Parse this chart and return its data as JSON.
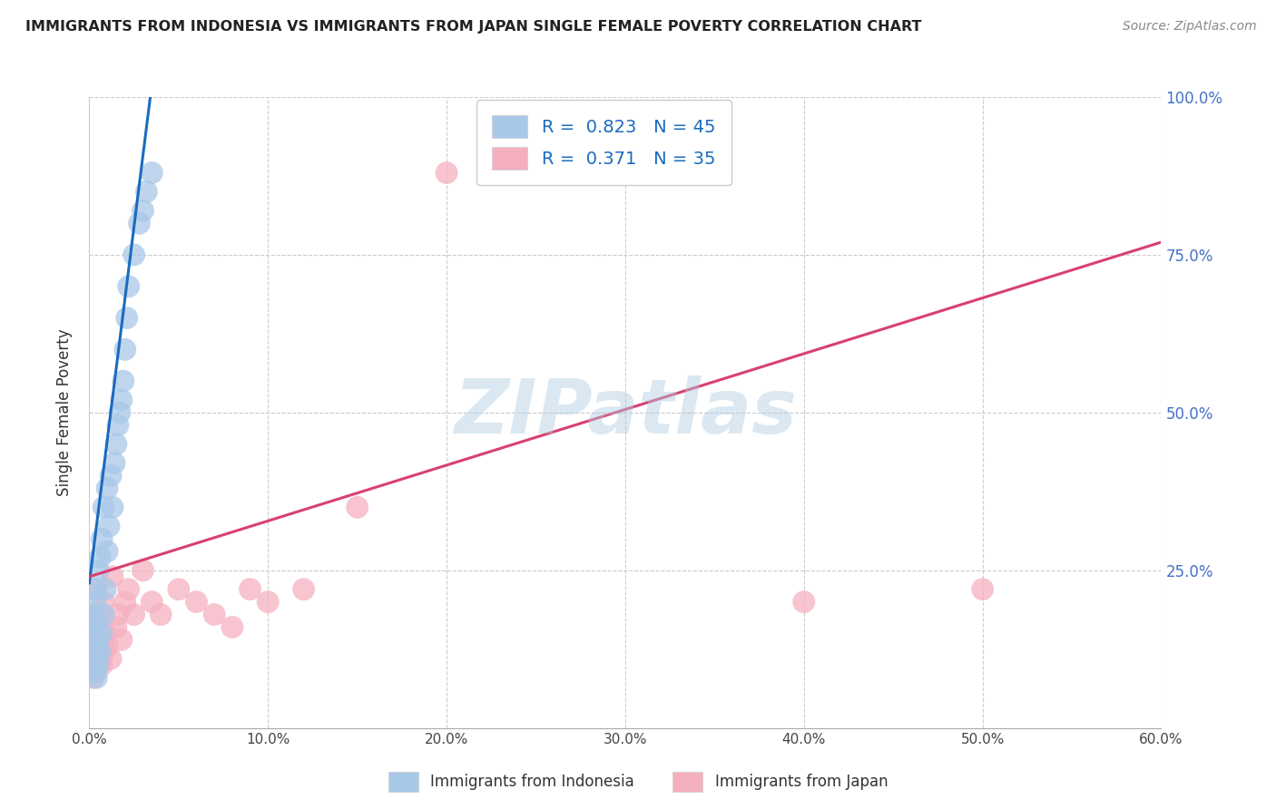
{
  "title": "IMMIGRANTS FROM INDONESIA VS IMMIGRANTS FROM JAPAN SINGLE FEMALE POVERTY CORRELATION CHART",
  "source": "Source: ZipAtlas.com",
  "ylabel": "Single Female Poverty",
  "legend_label_1": "Immigrants from Indonesia",
  "legend_label_2": "Immigrants from Japan",
  "R1": "0.823",
  "N1": "45",
  "R2": "0.371",
  "N2": "35",
  "color1": "#a8c8e8",
  "color1_line": "#1a6bbf",
  "color2": "#f5b0c0",
  "color2_line": "#d94070",
  "color_ytick": "#4472c4",
  "xlim": [
    0.0,
    0.6
  ],
  "ylim": [
    0.0,
    1.0
  ],
  "xticks": [
    0.0,
    0.1,
    0.2,
    0.3,
    0.4,
    0.5,
    0.6
  ],
  "xtick_labels": [
    "0.0%",
    "10.0%",
    "20.0%",
    "30.0%",
    "40.0%",
    "50.0%",
    "60.0%"
  ],
  "yticks": [
    0.25,
    0.5,
    0.75,
    1.0
  ],
  "ytick_labels": [
    "25.0%",
    "50.0%",
    "75.0%",
    "100.0%"
  ],
  "watermark": "ZIPatlas",
  "blue_x": [
    0.001,
    0.001,
    0.001,
    0.002,
    0.002,
    0.002,
    0.002,
    0.003,
    0.003,
    0.003,
    0.003,
    0.003,
    0.004,
    0.004,
    0.004,
    0.004,
    0.005,
    0.005,
    0.005,
    0.006,
    0.006,
    0.007,
    0.007,
    0.008,
    0.008,
    0.009,
    0.01,
    0.01,
    0.011,
    0.012,
    0.013,
    0.014,
    0.015,
    0.016,
    0.017,
    0.018,
    0.019,
    0.02,
    0.021,
    0.022,
    0.025,
    0.028,
    0.03,
    0.032,
    0.035
  ],
  "blue_y": [
    0.12,
    0.14,
    0.16,
    0.1,
    0.13,
    0.15,
    0.18,
    0.09,
    0.11,
    0.14,
    0.17,
    0.2,
    0.08,
    0.12,
    0.16,
    0.22,
    0.1,
    0.14,
    0.25,
    0.12,
    0.27,
    0.15,
    0.3,
    0.18,
    0.35,
    0.22,
    0.28,
    0.38,
    0.32,
    0.4,
    0.35,
    0.42,
    0.45,
    0.48,
    0.5,
    0.52,
    0.55,
    0.6,
    0.65,
    0.7,
    0.75,
    0.8,
    0.82,
    0.85,
    0.88
  ],
  "pink_x": [
    0.001,
    0.002,
    0.003,
    0.003,
    0.004,
    0.005,
    0.005,
    0.006,
    0.007,
    0.008,
    0.008,
    0.009,
    0.01,
    0.012,
    0.013,
    0.015,
    0.016,
    0.018,
    0.02,
    0.022,
    0.025,
    0.03,
    0.035,
    0.04,
    0.05,
    0.06,
    0.07,
    0.08,
    0.09,
    0.1,
    0.12,
    0.15,
    0.2,
    0.4,
    0.5
  ],
  "pink_y": [
    0.1,
    0.08,
    0.12,
    0.22,
    0.09,
    0.11,
    0.18,
    0.14,
    0.1,
    0.12,
    0.2,
    0.15,
    0.13,
    0.11,
    0.24,
    0.16,
    0.18,
    0.14,
    0.2,
    0.22,
    0.18,
    0.25,
    0.2,
    0.18,
    0.22,
    0.2,
    0.18,
    0.16,
    0.22,
    0.2,
    0.22,
    0.35,
    0.88,
    0.2,
    0.22
  ],
  "blue_line_x": [
    0.0,
    0.035
  ],
  "blue_line_y": [
    0.23,
    1.02
  ],
  "pink_line_x": [
    0.0,
    0.6
  ],
  "pink_line_y": [
    0.24,
    0.77
  ]
}
